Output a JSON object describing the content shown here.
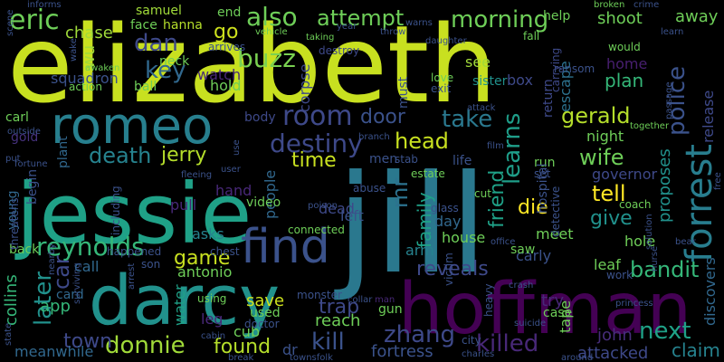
{
  "background": "#000000",
  "palette": {
    "lime": "#c8e020",
    "yellow_green": "#a0da39",
    "green": "#4ac16d",
    "teal_green": "#1fa187",
    "teal": "#277f8e",
    "blue": "#365c8d",
    "indigo": "#46327e",
    "purple": "#440154"
  },
  "words": [
    {
      "text": "elizabeth",
      "color": "#c8e020"
    },
    {
      "text": "jill",
      "color": "#2a788e"
    },
    {
      "text": "jessie",
      "color": "#1fa187"
    },
    {
      "text": "hoffman",
      "color": "#440154"
    },
    {
      "text": "darcy",
      "color": "#21918c"
    },
    {
      "text": "romeo",
      "color": "#277f8e"
    },
    {
      "text": "find",
      "color": "#3b528b"
    },
    {
      "text": "reynolds",
      "color": "#35b779"
    },
    {
      "text": "forrest",
      "color": "#287d8e"
    },
    {
      "text": "eric",
      "color": "#6ece58"
    },
    {
      "text": "also",
      "color": "#6ece58"
    },
    {
      "text": "attempt",
      "color": "#6ece58"
    },
    {
      "text": "morning",
      "color": "#6ece58"
    },
    {
      "text": "room",
      "color": "#3e4989"
    },
    {
      "text": "destiny",
      "color": "#3e4989"
    },
    {
      "text": "head",
      "color": "#c8e020"
    },
    {
      "text": "take",
      "color": "#2a788e"
    },
    {
      "text": "gerald",
      "color": "#b5de2b"
    },
    {
      "text": "police",
      "color": "#3b528b"
    },
    {
      "text": "learns",
      "color": "#1f9e89"
    },
    {
      "text": "door",
      "color": "#3b528b"
    },
    {
      "text": "buzz",
      "color": "#7ad151"
    },
    {
      "text": "key",
      "color": "#31688e"
    },
    {
      "text": "dan",
      "color": "#3e4989"
    },
    {
      "text": "chase",
      "color": "#9fda3a"
    },
    {
      "text": "go",
      "color": "#cde11d"
    },
    {
      "text": "death",
      "color": "#26828e"
    },
    {
      "text": "jerry",
      "color": "#b5de2b"
    },
    {
      "text": "time",
      "color": "#c8e020"
    },
    {
      "text": "mr",
      "color": "#2c728e"
    },
    {
      "text": "family",
      "color": "#1fa187"
    },
    {
      "text": "friend",
      "color": "#1fa187"
    },
    {
      "text": "wife",
      "color": "#6ece58"
    },
    {
      "text": "die",
      "color": "#fde725"
    },
    {
      "text": "tell",
      "color": "#fde725"
    },
    {
      "text": "give",
      "color": "#21918c"
    },
    {
      "text": "later",
      "color": "#21918c"
    },
    {
      "text": "car",
      "color": "#3e4989"
    },
    {
      "text": "game",
      "color": "#c8e020"
    },
    {
      "text": "donnie",
      "color": "#a0da39"
    },
    {
      "text": "town",
      "color": "#3e4989"
    },
    {
      "text": "found",
      "color": "#b5de2b"
    },
    {
      "text": "kill",
      "color": "#3b528b"
    },
    {
      "text": "zhang",
      "color": "#3e4989"
    },
    {
      "text": "killed",
      "color": "#482878"
    },
    {
      "text": "reveals",
      "color": "#3e4989"
    },
    {
      "text": "trap",
      "color": "#3e4989"
    },
    {
      "text": "next",
      "color": "#1fa187"
    },
    {
      "text": "bandit",
      "color": "#35b779"
    },
    {
      "text": "claim",
      "color": "#26828e"
    },
    {
      "text": "discovers",
      "color": "#31688e"
    },
    {
      "text": "release",
      "color": "#3e4989"
    },
    {
      "text": "john",
      "color": "#472d7b"
    },
    {
      "text": "attacked",
      "color": "#3e4989"
    },
    {
      "text": "antonio",
      "color": "#6ece58"
    },
    {
      "text": "save",
      "color": "#cde11d"
    },
    {
      "text": "app",
      "color": "#35b779"
    },
    {
      "text": "collins",
      "color": "#35b779"
    },
    {
      "text": "meanwhile",
      "color": "#31688e"
    },
    {
      "text": "samuel",
      "color": "#a0da39"
    },
    {
      "text": "hanna",
      "color": "#b5de2b"
    },
    {
      "text": "face",
      "color": "#6ece58"
    },
    {
      "text": "wu",
      "color": "#a0da39"
    },
    {
      "text": "squadron",
      "color": "#3b528b"
    },
    {
      "text": "neck",
      "color": "#6ece58"
    },
    {
      "text": "watch",
      "color": "#482878"
    },
    {
      "text": "hold",
      "color": "#6ece58"
    },
    {
      "text": "ball",
      "color": "#6ece58"
    },
    {
      "text": "corpse",
      "color": "#3e4989"
    },
    {
      "text": "sister",
      "color": "#21918c"
    },
    {
      "text": "escape",
      "color": "#2c728e"
    },
    {
      "text": "return",
      "color": "#3e4989"
    },
    {
      "text": "plan",
      "color": "#35b779"
    },
    {
      "text": "home",
      "color": "#481f70"
    },
    {
      "text": "shoot",
      "color": "#6ece58"
    },
    {
      "text": "away",
      "color": "#6ece58"
    },
    {
      "text": "help",
      "color": "#6ece58"
    },
    {
      "text": "see",
      "color": "#a0da39"
    },
    {
      "text": "box",
      "color": "#3e4989"
    },
    {
      "text": "must",
      "color": "#3b528b"
    },
    {
      "text": "night",
      "color": "#6ece58"
    },
    {
      "text": "governor",
      "color": "#3e4989"
    },
    {
      "text": "proposes",
      "color": "#21918c"
    },
    {
      "text": "meet",
      "color": "#6ece58"
    },
    {
      "text": "pull",
      "color": "#482878"
    },
    {
      "text": "hand",
      "color": "#482878"
    },
    {
      "text": "people",
      "color": "#31688e"
    },
    {
      "text": "asks",
      "color": "#26828e"
    },
    {
      "text": "house",
      "color": "#6ece58"
    },
    {
      "text": "arm",
      "color": "#26828e"
    },
    {
      "text": "day",
      "color": "#31688e"
    },
    {
      "text": "dead",
      "color": "#3e4989"
    },
    {
      "text": "left",
      "color": "#3b528b"
    },
    {
      "text": "hole",
      "color": "#6ece58"
    },
    {
      "text": "leaf",
      "color": "#6ece58"
    },
    {
      "text": "call",
      "color": "#31688e"
    },
    {
      "text": "water",
      "color": "#1fa187"
    },
    {
      "text": "leg",
      "color": "#482878"
    },
    {
      "text": "cub",
      "color": "#6ece58"
    },
    {
      "text": "dr",
      "color": "#3b528b"
    },
    {
      "text": "fortress",
      "color": "#3b528b"
    },
    {
      "text": "reach",
      "color": "#6ece58"
    },
    {
      "text": "try",
      "color": "#482878"
    },
    {
      "text": "tape",
      "color": "#6ece58"
    },
    {
      "text": "case",
      "color": "#6ece58"
    },
    {
      "text": "gun",
      "color": "#6ece58"
    },
    {
      "text": "carly",
      "color": "#3b528b"
    },
    {
      "text": "gold",
      "color": "#46327e"
    },
    {
      "text": "plant",
      "color": "#31688e"
    },
    {
      "text": "begin",
      "color": "#3b528b"
    },
    {
      "text": "young",
      "color": "#31688e"
    },
    {
      "text": "carl",
      "color": "#6ece58"
    },
    {
      "text": "card",
      "color": "#31688e"
    },
    {
      "text": "back",
      "color": "#6ece58"
    },
    {
      "text": "action",
      "color": "#6ece58"
    },
    {
      "text": "end",
      "color": "#6ece58"
    },
    {
      "text": "arrives",
      "color": "#3b528b"
    },
    {
      "text": "vehicle",
      "color": "#6ece58"
    },
    {
      "text": "destroy",
      "color": "#3e4989"
    },
    {
      "text": "taking",
      "color": "#6ece58"
    },
    {
      "text": "year",
      "color": "#3b528b"
    },
    {
      "text": "warns",
      "color": "#3b528b"
    },
    {
      "text": "throw",
      "color": "#3b528b"
    },
    {
      "text": "daughter",
      "color": "#3b528b"
    },
    {
      "text": "fall",
      "color": "#6ece58"
    },
    {
      "text": "broken",
      "color": "#6ece58"
    },
    {
      "text": "crime",
      "color": "#3b528b"
    },
    {
      "text": "learn",
      "color": "#3b528b"
    },
    {
      "text": "would",
      "color": "#6ece58"
    },
    {
      "text": "ransom",
      "color": "#3b528b"
    },
    {
      "text": "informs",
      "color": "#3b528b"
    },
    {
      "text": "scene",
      "color": "#3b528b"
    },
    {
      "text": "wake",
      "color": "#3b528b"
    },
    {
      "text": "awaken",
      "color": "#6ece58"
    },
    {
      "text": "outside",
      "color": "#3b528b"
    },
    {
      "text": "estate",
      "color": "#6ece58"
    },
    {
      "text": "carrying",
      "color": "#3e4989"
    },
    {
      "text": "love",
      "color": "#6ece58"
    },
    {
      "text": "exit",
      "color": "#3b528b"
    },
    {
      "text": "film",
      "color": "#3b528b"
    },
    {
      "text": "attack",
      "color": "#3b528b"
    },
    {
      "text": "branch",
      "color": "#3b528b"
    },
    {
      "text": "men",
      "color": "#3b528b"
    },
    {
      "text": "stab",
      "color": "#3b528b"
    },
    {
      "text": "life",
      "color": "#3b528b"
    },
    {
      "text": "run",
      "color": "#6ece58"
    },
    {
      "text": "set",
      "color": "#3b528b"
    },
    {
      "text": "hospital",
      "color": "#3b528b"
    },
    {
      "text": "together",
      "color": "#6ece58"
    },
    {
      "text": "passage",
      "color": "#3b528b"
    },
    {
      "text": "free",
      "color": "#3b528b"
    },
    {
      "text": "fortune",
      "color": "#3b528b"
    },
    {
      "text": "put",
      "color": "#3b528b"
    },
    {
      "text": "fleeing",
      "color": "#3b528b"
    },
    {
      "text": "user",
      "color": "#3b528b"
    },
    {
      "text": "use",
      "color": "#3b528b"
    },
    {
      "text": "body",
      "color": "#3e4989"
    },
    {
      "text": "abuse",
      "color": "#3b528b"
    },
    {
      "text": "glass",
      "color": "#3b528b"
    },
    {
      "text": "cut",
      "color": "#6ece58"
    },
    {
      "text": "coach",
      "color": "#6ece58"
    },
    {
      "text": "detective",
      "color": "#3b528b"
    },
    {
      "text": "nurse",
      "color": "#3b528b"
    },
    {
      "text": "solution",
      "color": "#3b528b"
    },
    {
      "text": "bear",
      "color": "#3b528b"
    },
    {
      "text": "threatens",
      "color": "#3b528b"
    },
    {
      "text": "including",
      "color": "#3b528b"
    },
    {
      "text": "video",
      "color": "#6ece58"
    },
    {
      "text": "poison",
      "color": "#3b528b"
    },
    {
      "text": "connected",
      "color": "#6ece58"
    },
    {
      "text": "chest",
      "color": "#3b528b"
    },
    {
      "text": "nearby",
      "color": "#3b528b"
    },
    {
      "text": "happened",
      "color": "#3b528b"
    },
    {
      "text": "son",
      "color": "#3b528b"
    },
    {
      "text": "arrest",
      "color": "#3b528b"
    },
    {
      "text": "victim",
      "color": "#3b528b"
    },
    {
      "text": "saw",
      "color": "#6ece58"
    },
    {
      "text": "office",
      "color": "#3b528b"
    },
    {
      "text": "crash",
      "color": "#3b528b"
    },
    {
      "text": "work",
      "color": "#3b528b"
    },
    {
      "text": "princess",
      "color": "#3b528b"
    },
    {
      "text": "surviving",
      "color": "#3b528b"
    },
    {
      "text": "using",
      "color": "#6ece58"
    },
    {
      "text": "used",
      "color": "#6ece58"
    },
    {
      "text": "monster",
      "color": "#3b528b"
    },
    {
      "text": "collar",
      "color": "#3b528b"
    },
    {
      "text": "man",
      "color": "#482878"
    },
    {
      "text": "heavy",
      "color": "#3b528b"
    },
    {
      "text": "suicide",
      "color": "#3b528b"
    },
    {
      "text": "doctor",
      "color": "#3b528b"
    },
    {
      "text": "cabin",
      "color": "#3b528b"
    },
    {
      "text": "state",
      "color": "#3b528b"
    },
    {
      "text": "break",
      "color": "#3b528b"
    },
    {
      "text": "townsfolk",
      "color": "#3b528b"
    },
    {
      "text": "city",
      "color": "#3b528b"
    },
    {
      "text": "charles",
      "color": "#3b528b"
    },
    {
      "text": "around",
      "color": "#3b528b"
    }
  ]
}
